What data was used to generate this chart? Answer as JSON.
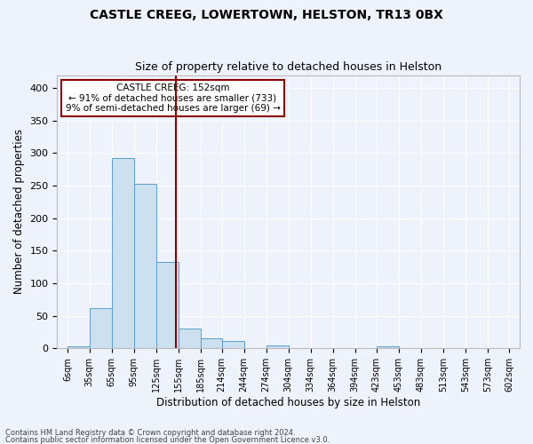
{
  "title": "CASTLE CREEG, LOWERTOWN, HELSTON, TR13 0BX",
  "subtitle": "Size of property relative to detached houses in Helston",
  "xlabel": "Distribution of detached houses by size in Helston",
  "ylabel": "Number of detached properties",
  "bar_color": "#cce0f0",
  "bar_edge_color": "#5a9ec9",
  "vline_x": 152,
  "vline_color": "#8b0000",
  "annotation_line1": "CASTLE CREEG: 152sqm",
  "annotation_line2": "← 91% of detached houses are smaller (733)",
  "annotation_line3": "9% of semi-detached houses are larger (69) →",
  "annotation_box_color": "#8b0000",
  "footnote1": "Contains HM Land Registry data © Crown copyright and database right 2024.",
  "footnote2": "Contains public sector information licensed under the Open Government Licence v3.0.",
  "bin_edges": [
    6,
    35,
    65,
    95,
    125,
    155,
    185,
    214,
    244,
    274,
    304,
    334,
    364,
    394,
    423,
    453,
    483,
    513,
    543,
    573,
    602
  ],
  "bin_counts": [
    3,
    62,
    293,
    253,
    133,
    30,
    16,
    11,
    0,
    5,
    0,
    0,
    0,
    0,
    3,
    0,
    0,
    0,
    0,
    0
  ],
  "ylim": [
    0,
    420
  ],
  "background_color": "#eef2fa",
  "plot_bg_color": "#eef2fa",
  "grid_color": "#ffffff",
  "title_fontsize": 10,
  "subtitle_fontsize": 9,
  "xlabel_fontsize": 8.5,
  "ylabel_fontsize": 8.5,
  "tick_fontsize": 7,
  "footnote_fontsize": 6
}
